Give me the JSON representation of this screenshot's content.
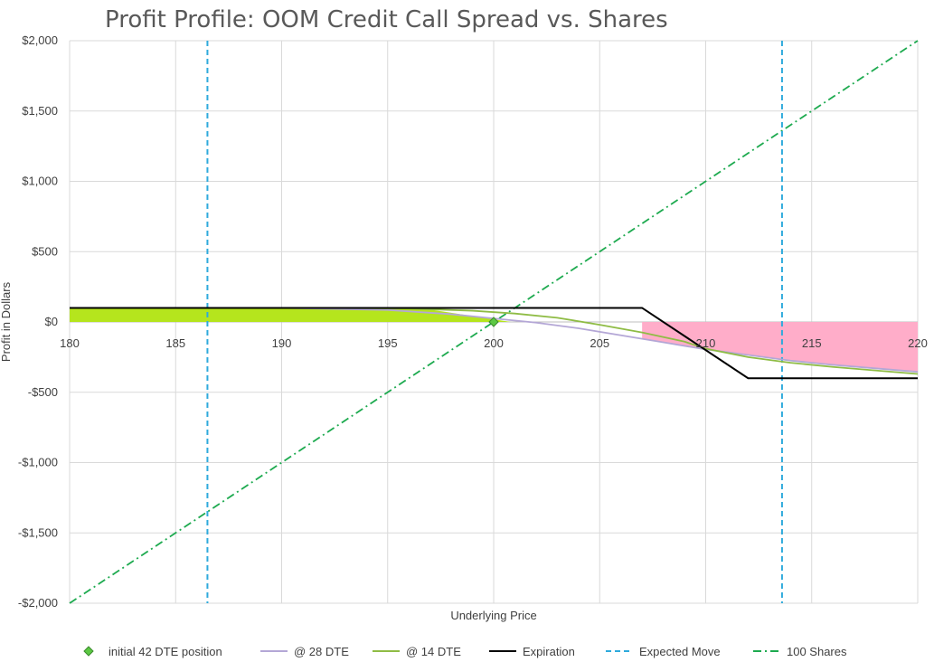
{
  "chart_data": {
    "type": "line",
    "title": "Profit Profile: OOM Credit Call Spread vs. Shares",
    "xlabel": "Underlying Price",
    "ylabel": "Profit in Dollars",
    "xlim": [
      180,
      220
    ],
    "ylim": [
      -2000,
      2000
    ],
    "x_ticks": [
      180,
      185,
      190,
      195,
      200,
      205,
      210,
      215,
      220
    ],
    "x_tick_labels": [
      "180",
      "185",
      "190",
      "195",
      "200",
      "205",
      "210",
      "215",
      "220"
    ],
    "y_ticks": [
      -2000,
      -1500,
      -1000,
      -500,
      0,
      500,
      1000,
      1500,
      2000
    ],
    "y_tick_labels": [
      "-$2,000",
      "-$1,500",
      "-$1,000",
      "-$500",
      "$0",
      "$500",
      "$1,000",
      "$1,500",
      "$2,000"
    ],
    "grid": true,
    "legend_position": "bottom",
    "profit_area": {
      "color": "#b5e51d",
      "x_end": 200.8
    },
    "loss_area": {
      "color": "#ffadc9",
      "x_start": 207
    },
    "series": [
      {
        "name": "initial 42 DTE position",
        "kind": "marker",
        "color": "#5cc843",
        "x": [
          200
        ],
        "y": [
          0
        ]
      },
      {
        "name": "@ 28 DTE",
        "kind": "line",
        "color": "#b4a7d6",
        "x": [
          180,
          190,
          195,
          198,
          200,
          202,
          204,
          206,
          208,
          210,
          212,
          214,
          216,
          218,
          220
        ],
        "y": [
          100,
          100,
          85,
          55,
          25,
          -5,
          -45,
          -95,
          -145,
          -195,
          -235,
          -275,
          -305,
          -330,
          -355
        ]
      },
      {
        "name": "@ 14 DTE",
        "kind": "line",
        "color": "#8fbc45",
        "x": [
          180,
          192,
          196,
          199,
          201,
          203,
          205,
          207,
          209,
          210,
          212,
          214,
          216,
          218,
          220
        ],
        "y": [
          100,
          100,
          95,
          80,
          60,
          30,
          -20,
          -75,
          -140,
          -190,
          -250,
          -290,
          -320,
          -345,
          -370
        ]
      },
      {
        "name": "Expiration",
        "kind": "line",
        "color": "#000000",
        "x": [
          180,
          207,
          212,
          220
        ],
        "y": [
          100,
          100,
          -400,
          -400
        ]
      },
      {
        "name": "Expected Move",
        "kind": "vlines",
        "color": "#2eaadc",
        "x": [
          186.5,
          213.6
        ]
      },
      {
        "name": "100 Shares",
        "kind": "line",
        "color": "#1daa4f",
        "x": [
          180,
          220
        ],
        "y": [
          -2000,
          2000
        ]
      }
    ]
  }
}
